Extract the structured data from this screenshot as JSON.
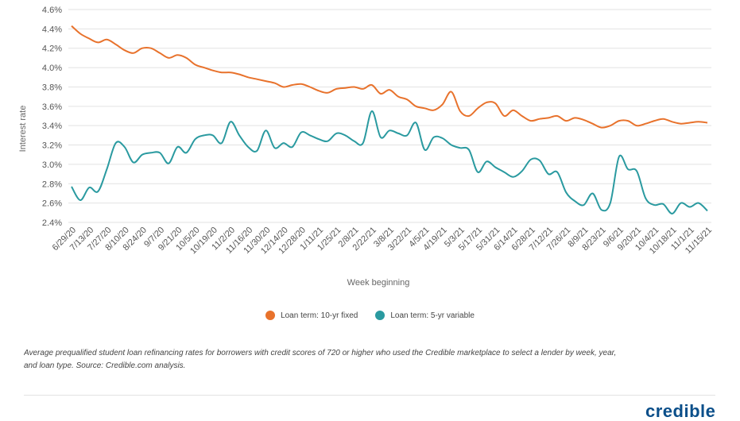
{
  "chart_data": {
    "type": "line",
    "xlabel": "Week beginning",
    "ylabel": "Interest rate",
    "ylim": [
      2.4,
      4.6
    ],
    "yticks": [
      "4.6%",
      "4.4%",
      "4.2%",
      "4.0%",
      "3.8%",
      "3.6%",
      "3.4%",
      "3.2%",
      "3.0%",
      "2.8%",
      "2.6%",
      "2.4%"
    ],
    "ytick_values": [
      4.6,
      4.4,
      4.2,
      4.0,
      3.8,
      3.6,
      3.4,
      3.2,
      3.0,
      2.8,
      2.6,
      2.4
    ],
    "grid": "horizontal",
    "legend_position": "bottom-center",
    "x": [
      "6/29/20",
      "7/6/20",
      "7/13/20",
      "7/20/20",
      "7/27/20",
      "8/3/20",
      "8/10/20",
      "8/17/20",
      "8/24/20",
      "8/31/20",
      "9/7/20",
      "9/14/20",
      "9/21/20",
      "9/28/20",
      "10/5/20",
      "10/12/20",
      "10/19/20",
      "10/26/20",
      "11/2/20",
      "11/9/20",
      "11/16/20",
      "11/23/20",
      "11/30/20",
      "12/7/20",
      "12/14/20",
      "12/21/20",
      "12/28/20",
      "1/4/21",
      "1/11/21",
      "1/18/21",
      "1/25/21",
      "2/1/21",
      "2/8/21",
      "2/15/21",
      "2/22/21",
      "3/1/21",
      "3/8/21",
      "3/15/21",
      "3/22/21",
      "3/29/21",
      "4/5/21",
      "4/12/21",
      "4/19/21",
      "4/26/21",
      "5/3/21",
      "5/10/21",
      "5/17/21",
      "5/24/21",
      "5/31/21",
      "6/7/21",
      "6/14/21",
      "6/21/21",
      "6/28/21",
      "7/5/21",
      "7/12/21",
      "7/19/21",
      "7/26/21",
      "8/2/21",
      "8/9/21",
      "8/16/21",
      "8/23/21",
      "8/30/21",
      "9/6/21",
      "9/13/21",
      "9/20/21",
      "9/27/21",
      "10/4/21",
      "10/11/21",
      "10/18/21",
      "10/25/21",
      "11/1/21",
      "11/8/21",
      "11/15/21"
    ],
    "x_tick_labels": [
      "6/29/20",
      "7/13/20",
      "7/27/20",
      "8/10/20",
      "8/24/20",
      "9/7/20",
      "9/21/20",
      "10/5/20",
      "10/19/20",
      "11/2/20",
      "11/16/20",
      "11/30/20",
      "12/14/20",
      "12/28/20",
      "1/11/21",
      "1/25/21",
      "2/8/21",
      "2/22/21",
      "3/8/21",
      "3/22/21",
      "4/5/21",
      "4/19/21",
      "5/3/21",
      "5/17/21",
      "5/31/21",
      "6/14/21",
      "6/28/21",
      "7/12/21",
      "7/26/21",
      "8/9/21",
      "8/23/21",
      "9/6/21",
      "9/20/21",
      "10/4/21",
      "10/18/21",
      "11/1/21",
      "11/15/21"
    ],
    "series": [
      {
        "name": "Loan term: 10-yr fixed",
        "color": "#e8722c",
        "values": [
          4.43,
          4.35,
          4.3,
          4.26,
          4.29,
          4.24,
          4.18,
          4.15,
          4.2,
          4.2,
          4.15,
          4.1,
          4.13,
          4.1,
          4.03,
          4.0,
          3.97,
          3.95,
          3.95,
          3.93,
          3.9,
          3.88,
          3.86,
          3.84,
          3.8,
          3.82,
          3.83,
          3.8,
          3.76,
          3.74,
          3.78,
          3.79,
          3.8,
          3.78,
          3.82,
          3.73,
          3.77,
          3.7,
          3.67,
          3.6,
          3.58,
          3.56,
          3.62,
          3.75,
          3.55,
          3.5,
          3.58,
          3.64,
          3.63,
          3.5,
          3.56,
          3.5,
          3.45,
          3.47,
          3.48,
          3.5,
          3.45,
          3.48,
          3.46,
          3.42,
          3.38,
          3.4,
          3.45,
          3.45,
          3.4,
          3.42,
          3.45,
          3.47,
          3.44,
          3.42,
          3.43,
          3.44,
          3.43
        ]
      },
      {
        "name": "Loan term: 5-yr variable",
        "color": "#2a9aa0",
        "values": [
          2.77,
          2.63,
          2.76,
          2.72,
          2.95,
          3.22,
          3.18,
          3.02,
          3.1,
          3.12,
          3.12,
          3.01,
          3.18,
          3.12,
          3.26,
          3.3,
          3.3,
          3.22,
          3.44,
          3.3,
          3.18,
          3.14,
          3.35,
          3.17,
          3.22,
          3.18,
          3.33,
          3.3,
          3.26,
          3.24,
          3.32,
          3.3,
          3.24,
          3.22,
          3.55,
          3.28,
          3.35,
          3.32,
          3.3,
          3.43,
          3.15,
          3.28,
          3.27,
          3.2,
          3.17,
          3.15,
          2.92,
          3.03,
          2.97,
          2.92,
          2.87,
          2.93,
          3.05,
          3.04,
          2.9,
          2.92,
          2.71,
          2.62,
          2.58,
          2.7,
          2.53,
          2.6,
          3.08,
          2.95,
          2.93,
          2.65,
          2.58,
          2.59,
          2.49,
          2.6,
          2.56,
          2.6,
          2.52
        ]
      }
    ]
  },
  "caption": {
    "line1": "Average prequalified student loan refinancing rates for borrowers with credit scores of 720 or higher who used the Credible marketplace to select a lender by week, year,",
    "line2": "and loan type. Source: Credible.com analysis."
  },
  "brand": {
    "logo_text": "credible"
  }
}
